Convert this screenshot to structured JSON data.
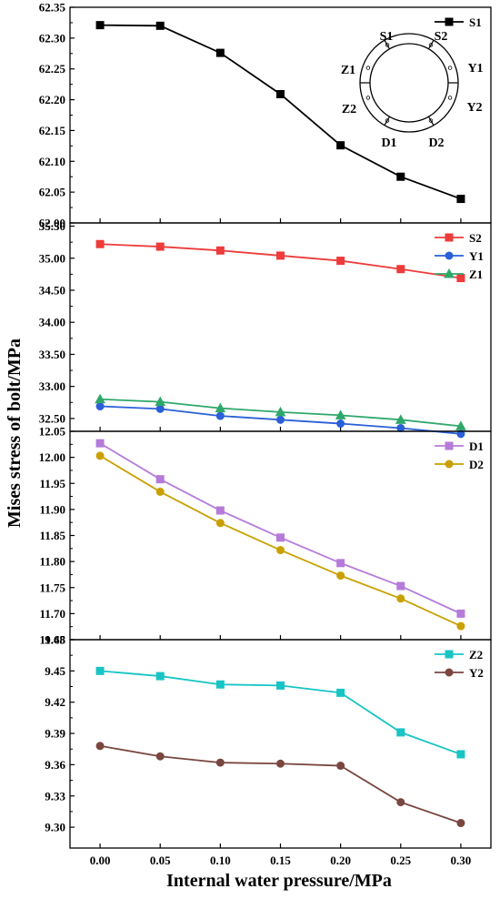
{
  "chart_data": {
    "type": "line",
    "xlabel": "Internal water pressure/MPa",
    "ylabel": "Mises stress of bolt/MPa",
    "x": [
      0.0,
      0.05,
      0.1,
      0.15,
      0.2,
      0.25,
      0.3
    ],
    "x_ticks": [
      "0.00",
      "0.05",
      "0.10",
      "0.15",
      "0.20",
      "0.25",
      "0.30"
    ],
    "xlim": [
      -0.025,
      0.325
    ],
    "panels": [
      {
        "ylim": [
          62.0,
          62.35
        ],
        "y_ticks": [
          "62.00",
          "62.05",
          "62.10",
          "62.15",
          "62.20",
          "62.25",
          "62.30",
          "62.35"
        ],
        "legend_position": "top-right",
        "series": [
          {
            "name": "S1",
            "color": "#000000",
            "marker": "square",
            "values": [
              62.321,
              62.32,
              62.276,
              62.209,
              62.126,
              62.075,
              62.039
            ]
          }
        ],
        "inset": {
          "labels": [
            "S1",
            "S2",
            "Z1",
            "Y1",
            "Z2",
            "Y2",
            "D1",
            "D2"
          ]
        }
      },
      {
        "ylim": [
          32.3,
          35.55
        ],
        "y_ticks": [
          "32.50",
          "33.00",
          "33.50",
          "34.00",
          "34.50",
          "35.00",
          "35.50"
        ],
        "legend_position": "top-right",
        "series": [
          {
            "name": "S2",
            "color": "#ee3b3b",
            "marker": "square",
            "values": [
              35.22,
              35.18,
              35.12,
              35.04,
              34.96,
              34.83,
              34.69
            ]
          },
          {
            "name": "Y1",
            "color": "#2a5fd8",
            "marker": "circle",
            "values": [
              32.69,
              32.65,
              32.54,
              32.48,
              32.42,
              32.35,
              32.26
            ]
          },
          {
            "name": "Z1",
            "color": "#2ea86a",
            "marker": "triangle",
            "values": [
              32.8,
              32.76,
              32.66,
              32.6,
              32.55,
              32.48,
              32.38
            ]
          }
        ]
      },
      {
        "ylim": [
          11.65,
          12.05
        ],
        "y_ticks": [
          "11.65",
          "11.70",
          "11.75",
          "11.80",
          "11.85",
          "11.90",
          "11.95",
          "12.00",
          "12.05"
        ],
        "legend_position": "top-right",
        "series": [
          {
            "name": "D1",
            "color": "#b57bdb",
            "marker": "square",
            "values": [
              12.027,
              11.958,
              11.898,
              11.846,
              11.797,
              11.753,
              11.7
            ]
          },
          {
            "name": "D2",
            "color": "#c9a000",
            "marker": "circle",
            "values": [
              12.003,
              11.934,
              11.874,
              11.822,
              11.773,
              11.729,
              11.676
            ]
          }
        ]
      },
      {
        "ylim": [
          9.28,
          9.48
        ],
        "y_ticks": [
          "9.30",
          "9.33",
          "9.36",
          "9.39",
          "9.42",
          "9.45",
          "9.48"
        ],
        "legend_position": "top-right",
        "series": [
          {
            "name": "Z2",
            "color": "#18c4c4",
            "marker": "square",
            "values": [
              9.45,
              9.445,
              9.437,
              9.436,
              9.429,
              9.391,
              9.37
            ]
          },
          {
            "name": "Y2",
            "color": "#7a4640",
            "marker": "circle",
            "values": [
              9.378,
              9.368,
              9.362,
              9.361,
              9.359,
              9.324,
              9.304
            ]
          }
        ]
      }
    ]
  }
}
